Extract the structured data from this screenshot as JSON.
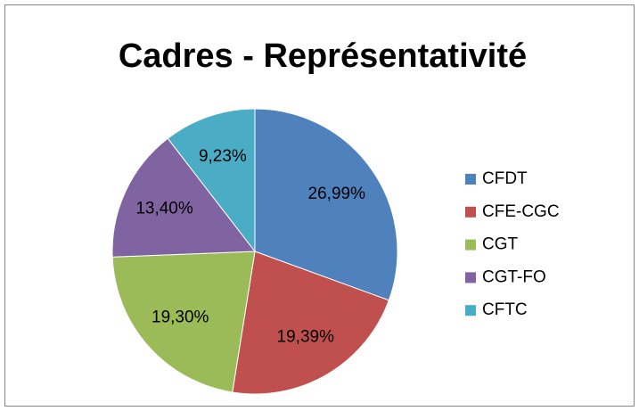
{
  "chart_data": {
    "type": "pie",
    "title": "Cadres - Représentativité",
    "categories": [
      "CFDT",
      "CFE-CGC",
      "CGT",
      "CGT-FO",
      "CFTC"
    ],
    "values": [
      26.99,
      19.39,
      19.3,
      13.4,
      9.23
    ],
    "value_labels": [
      "26,99%",
      "19,39%",
      "19,30%",
      "13,40%",
      "9,23%"
    ],
    "colors": [
      "#4f81bd",
      "#c0504d",
      "#9bbb59",
      "#8064a2",
      "#4bacc6"
    ],
    "legend": "right"
  }
}
